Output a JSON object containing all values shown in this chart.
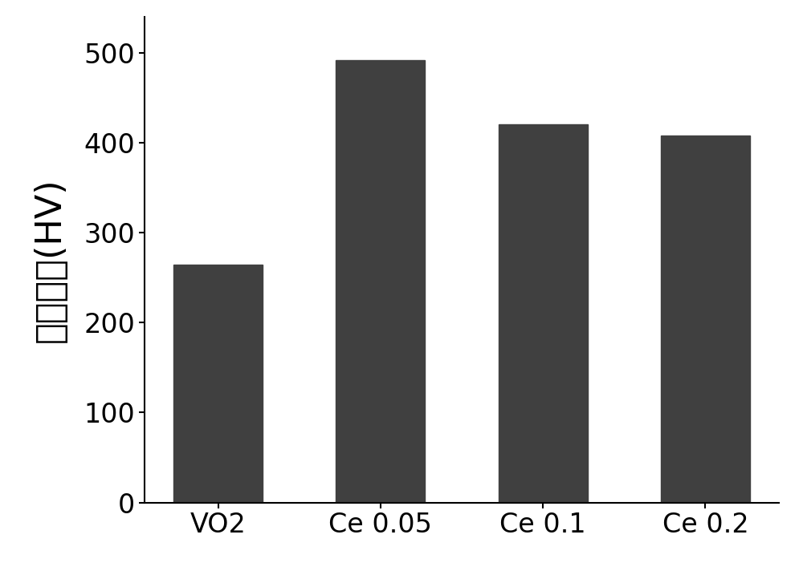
{
  "categories": [
    "VO2",
    "Ce 0.05",
    "Ce 0.1",
    "Ce 0.2"
  ],
  "values": [
    265,
    492,
    421,
    408
  ],
  "bar_color": "#404040",
  "ylabel": "维氏硬度(HV)",
  "ylim": [
    0,
    540
  ],
  "yticks": [
    0,
    100,
    200,
    300,
    400,
    500
  ],
  "bar_width": 0.55,
  "ylabel_fontsize": 32,
  "tick_fontsize": 24,
  "xtick_fontsize": 24,
  "background_color": "#ffffff",
  "spine_color": "#000000",
  "tick_label_color": "#000000"
}
